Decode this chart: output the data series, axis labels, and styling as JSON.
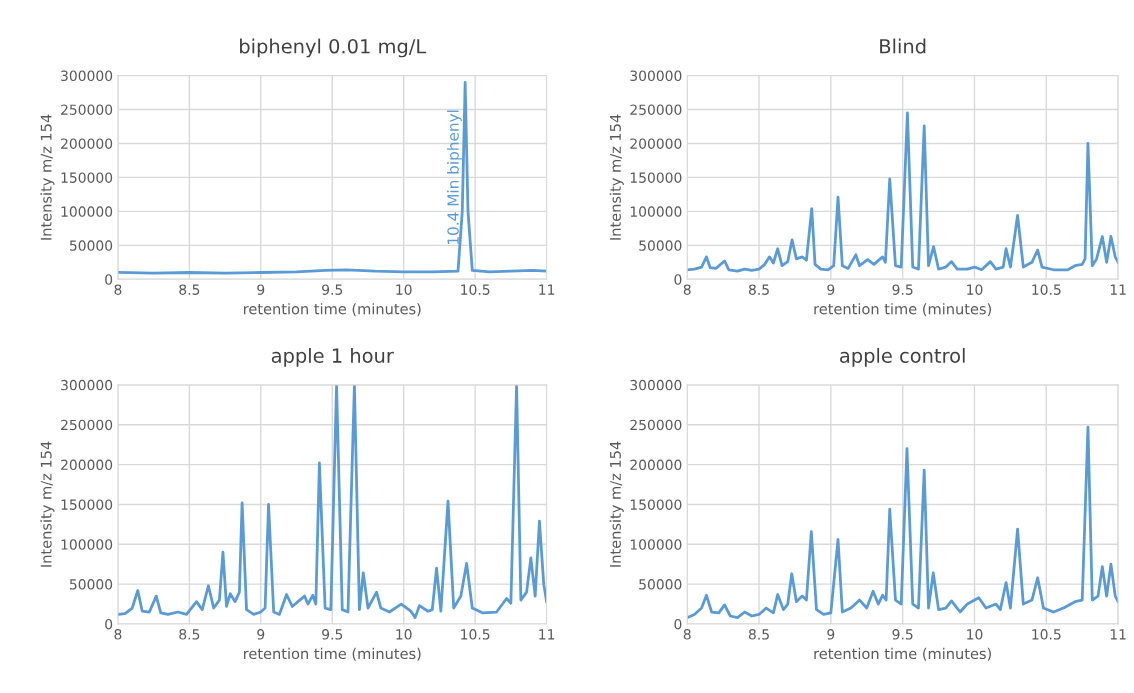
{
  "chart_data": [
    {
      "type": "line",
      "title": "biphenyl 0.01 mg/L",
      "xlabel": "retention time (minutes)",
      "ylabel": "Intensity m/z 154",
      "xlim": [
        8,
        11
      ],
      "xticks": [
        8,
        8.5,
        9,
        9.5,
        10,
        10.5,
        11
      ],
      "ylim": [
        0,
        300000
      ],
      "yticks": [
        0,
        50000,
        100000,
        150000,
        200000,
        250000,
        300000
      ],
      "grid": true,
      "marker": "none",
      "line_style": "solid",
      "annotations": [
        "10.4 Min biphenyl"
      ],
      "series": [
        {
          "color": "#5b9bd5",
          "x": [
            8,
            8.25,
            8.5,
            8.75,
            9,
            9.25,
            9.45,
            9.6,
            9.8,
            10,
            10.2,
            10.38,
            10.41,
            10.43,
            10.45,
            10.48,
            10.6,
            10.75,
            10.9,
            11
          ],
          "values": [
            10000,
            9000,
            10000,
            9000,
            10000,
            11000,
            13000,
            14000,
            12000,
            11000,
            11000,
            12000,
            100000,
            290000,
            100000,
            13000,
            11000,
            12000,
            13000,
            12000
          ]
        }
      ]
    },
    {
      "type": "line",
      "title": "Blind",
      "xlabel": "retention time (minutes)",
      "ylabel": "Intensity m/z 154",
      "xlim": [
        8,
        11
      ],
      "xticks": [
        8,
        8.5,
        9,
        9.5,
        10,
        10.5,
        11
      ],
      "ylim": [
        0,
        300000
      ],
      "yticks": [
        0,
        50000,
        100000,
        150000,
        200000,
        250000,
        300000
      ],
      "grid": true,
      "marker": "none",
      "line_style": "solid",
      "series": [
        {
          "color": "#5b9bd5",
          "x": [
            8,
            8.05,
            8.1,
            8.134,
            8.16,
            8.2,
            8.26,
            8.29,
            8.35,
            8.4,
            8.45,
            8.5,
            8.54,
            8.573,
            8.6,
            8.63,
            8.66,
            8.7,
            8.73,
            8.76,
            8.8,
            8.83,
            8.867,
            8.89,
            8.93,
            8.98,
            9.02,
            9.05,
            9.08,
            9.12,
            9.174,
            9.2,
            9.256,
            9.3,
            9.36,
            9.38,
            9.41,
            9.45,
            9.49,
            9.533,
            9.57,
            9.61,
            9.65,
            9.68,
            9.715,
            9.75,
            9.8,
            9.84,
            9.88,
            9.95,
            10,
            10.05,
            10.11,
            10.15,
            10.2,
            10.22,
            10.25,
            10.3,
            10.34,
            10.4,
            10.44,
            10.47,
            10.55,
            10.65,
            10.7,
            10.75,
            10.77,
            10.79,
            10.82,
            10.85,
            10.89,
            10.92,
            10.95,
            10.98,
            11
          ],
          "values": [
            14000,
            15000,
            18000,
            33000,
            17000,
            16000,
            27000,
            14000,
            12000,
            15000,
            13000,
            15000,
            22000,
            33000,
            24000,
            45000,
            20000,
            26000,
            58000,
            30000,
            33000,
            28000,
            104000,
            22000,
            15000,
            14000,
            20000,
            121000,
            20000,
            16000,
            36000,
            20000,
            29000,
            22000,
            33000,
            25000,
            148000,
            20000,
            18000,
            245000,
            18000,
            15000,
            226000,
            20000,
            48000,
            15000,
            18000,
            26000,
            15000,
            15000,
            18000,
            14000,
            26000,
            15000,
            18000,
            45000,
            18000,
            94000,
            18000,
            25000,
            43000,
            18000,
            14000,
            14000,
            20000,
            22000,
            30000,
            200000,
            20000,
            30000,
            63000,
            25000,
            63000,
            33000,
            25000
          ]
        }
      ]
    },
    {
      "type": "line",
      "title": "apple 1 hour",
      "xlabel": "retention time (minutes)",
      "ylabel": "Intensity m/z 154",
      "xlim": [
        8,
        11
      ],
      "xticks": [
        8,
        8.5,
        9,
        9.5,
        10,
        10.5,
        11
      ],
      "ylim": [
        0,
        300000
      ],
      "yticks": [
        0,
        50000,
        100000,
        150000,
        200000,
        250000,
        300000
      ],
      "grid": true,
      "marker": "none",
      "line_style": "solid",
      "series": [
        {
          "color": "#5b9bd5",
          "x": [
            8,
            8.05,
            8.1,
            8.139,
            8.17,
            8.22,
            8.268,
            8.3,
            8.35,
            8.42,
            8.48,
            8.55,
            8.59,
            8.633,
            8.67,
            8.71,
            8.735,
            8.76,
            8.786,
            8.82,
            8.85,
            8.869,
            8.9,
            8.95,
            9.0,
            9.03,
            9.054,
            9.09,
            9.13,
            9.18,
            9.22,
            9.26,
            9.306,
            9.33,
            9.363,
            9.385,
            9.41,
            9.45,
            9.49,
            9.53,
            9.57,
            9.61,
            9.655,
            9.69,
            9.717,
            9.75,
            9.81,
            9.84,
            9.9,
            9.983,
            10.05,
            10.08,
            10.11,
            10.17,
            10.2,
            10.23,
            10.26,
            10.31,
            10.35,
            10.4,
            10.44,
            10.48,
            10.55,
            10.65,
            10.72,
            10.75,
            10.79,
            10.82,
            10.86,
            10.89,
            10.92,
            10.95,
            10.98,
            11
          ],
          "values": [
            12000,
            13000,
            20000,
            42000,
            16000,
            15000,
            35000,
            14000,
            12000,
            15000,
            12000,
            28000,
            18000,
            48000,
            20000,
            30000,
            90000,
            22000,
            38000,
            28000,
            40000,
            152000,
            18000,
            12000,
            15000,
            20000,
            150000,
            15000,
            12000,
            37000,
            22000,
            28000,
            35000,
            25000,
            36000,
            25000,
            202000,
            20000,
            18000,
            300000,
            18000,
            15000,
            300000,
            18000,
            64000,
            20000,
            40000,
            20000,
            15000,
            25000,
            16000,
            8000,
            23000,
            16000,
            18000,
            70000,
            16000,
            154000,
            20000,
            35000,
            76000,
            20000,
            14000,
            15000,
            32000,
            26000,
            300000,
            30000,
            40000,
            83000,
            35000,
            129000,
            50000,
            28000
          ]
        }
      ]
    },
    {
      "type": "line",
      "title": "apple control",
      "xlabel": "retention time (minutes)",
      "ylabel": "Intensity m/z 154",
      "xlim": [
        8,
        11
      ],
      "xticks": [
        8,
        8.5,
        9,
        9.5,
        10,
        10.5,
        11
      ],
      "ylim": [
        0,
        300000
      ],
      "yticks": [
        0,
        50000,
        100000,
        150000,
        200000,
        250000,
        300000
      ],
      "grid": true,
      "marker": "none",
      "line_style": "solid",
      "series": [
        {
          "color": "#5b9bd5",
          "x": [
            8,
            8.05,
            8.1,
            8.134,
            8.17,
            8.22,
            8.26,
            8.3,
            8.35,
            8.4,
            8.45,
            8.5,
            8.55,
            8.6,
            8.63,
            8.67,
            8.7,
            8.728,
            8.76,
            8.8,
            8.83,
            8.864,
            8.9,
            8.95,
            9.0,
            9.05,
            9.08,
            9.14,
            9.2,
            9.25,
            9.294,
            9.33,
            9.36,
            9.385,
            9.41,
            9.45,
            9.49,
            9.53,
            9.57,
            9.61,
            9.65,
            9.68,
            9.713,
            9.75,
            9.8,
            9.84,
            9.9,
            9.95,
            10.03,
            10.08,
            10.15,
            10.18,
            10.22,
            10.25,
            10.3,
            10.34,
            10.4,
            10.44,
            10.48,
            10.55,
            10.62,
            10.7,
            10.75,
            10.79,
            10.82,
            10.86,
            10.89,
            10.92,
            10.95,
            10.98,
            11
          ],
          "values": [
            8000,
            12000,
            20000,
            36000,
            15000,
            14000,
            24000,
            10000,
            8000,
            15000,
            10000,
            12000,
            20000,
            14000,
            37000,
            18000,
            25000,
            63000,
            28000,
            35000,
            30000,
            116000,
            18000,
            12000,
            14000,
            106000,
            15000,
            20000,
            30000,
            20000,
            41000,
            25000,
            36000,
            30000,
            144000,
            30000,
            25000,
            220000,
            25000,
            20000,
            193000,
            20000,
            64000,
            18000,
            20000,
            29000,
            15000,
            25000,
            33000,
            20000,
            25000,
            18000,
            52000,
            20000,
            119000,
            25000,
            30000,
            58000,
            20000,
            15000,
            20000,
            28000,
            30000,
            247000,
            30000,
            35000,
            72000,
            35000,
            75000,
            35000,
            28000
          ]
        }
      ]
    }
  ]
}
